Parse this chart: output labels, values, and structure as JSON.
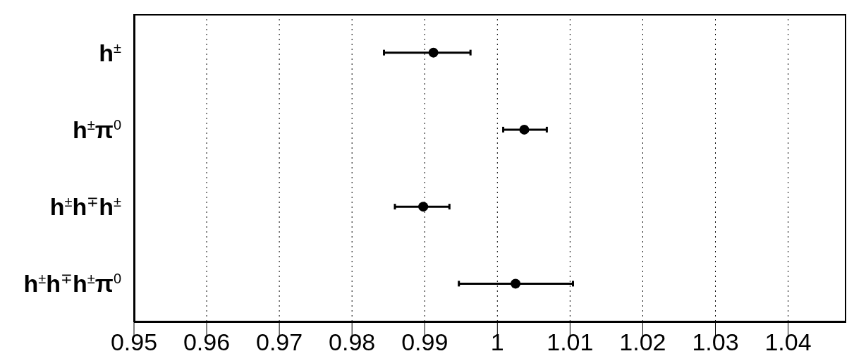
{
  "chart_data": {
    "type": "scatter",
    "orientation": "horizontal",
    "categories": [
      "h$^{±}$",
      "h$^{±}$π$^{0}$",
      "h$^{±}$h$^{∓}$h$^{±}$",
      "h$^{±}$h$^{∓}$h$^{±}$π$^{0}$"
    ],
    "values": [
      0.9912,
      1.0037,
      0.9898,
      1.0025
    ],
    "errors": [
      [
        0.9844,
        0.9963
      ],
      [
        1.0008,
        1.0068
      ],
      [
        0.9859,
        0.9934
      ],
      [
        0.9947,
        1.0104
      ]
    ],
    "color": "#000000",
    "marker": "circle",
    "xlim": [
      0.95,
      1.048
    ],
    "xticks": [
      0.95,
      0.96,
      0.97,
      0.98,
      0.99,
      1,
      1.01,
      1.02,
      1.03,
      1.04
    ],
    "grid": "x"
  }
}
